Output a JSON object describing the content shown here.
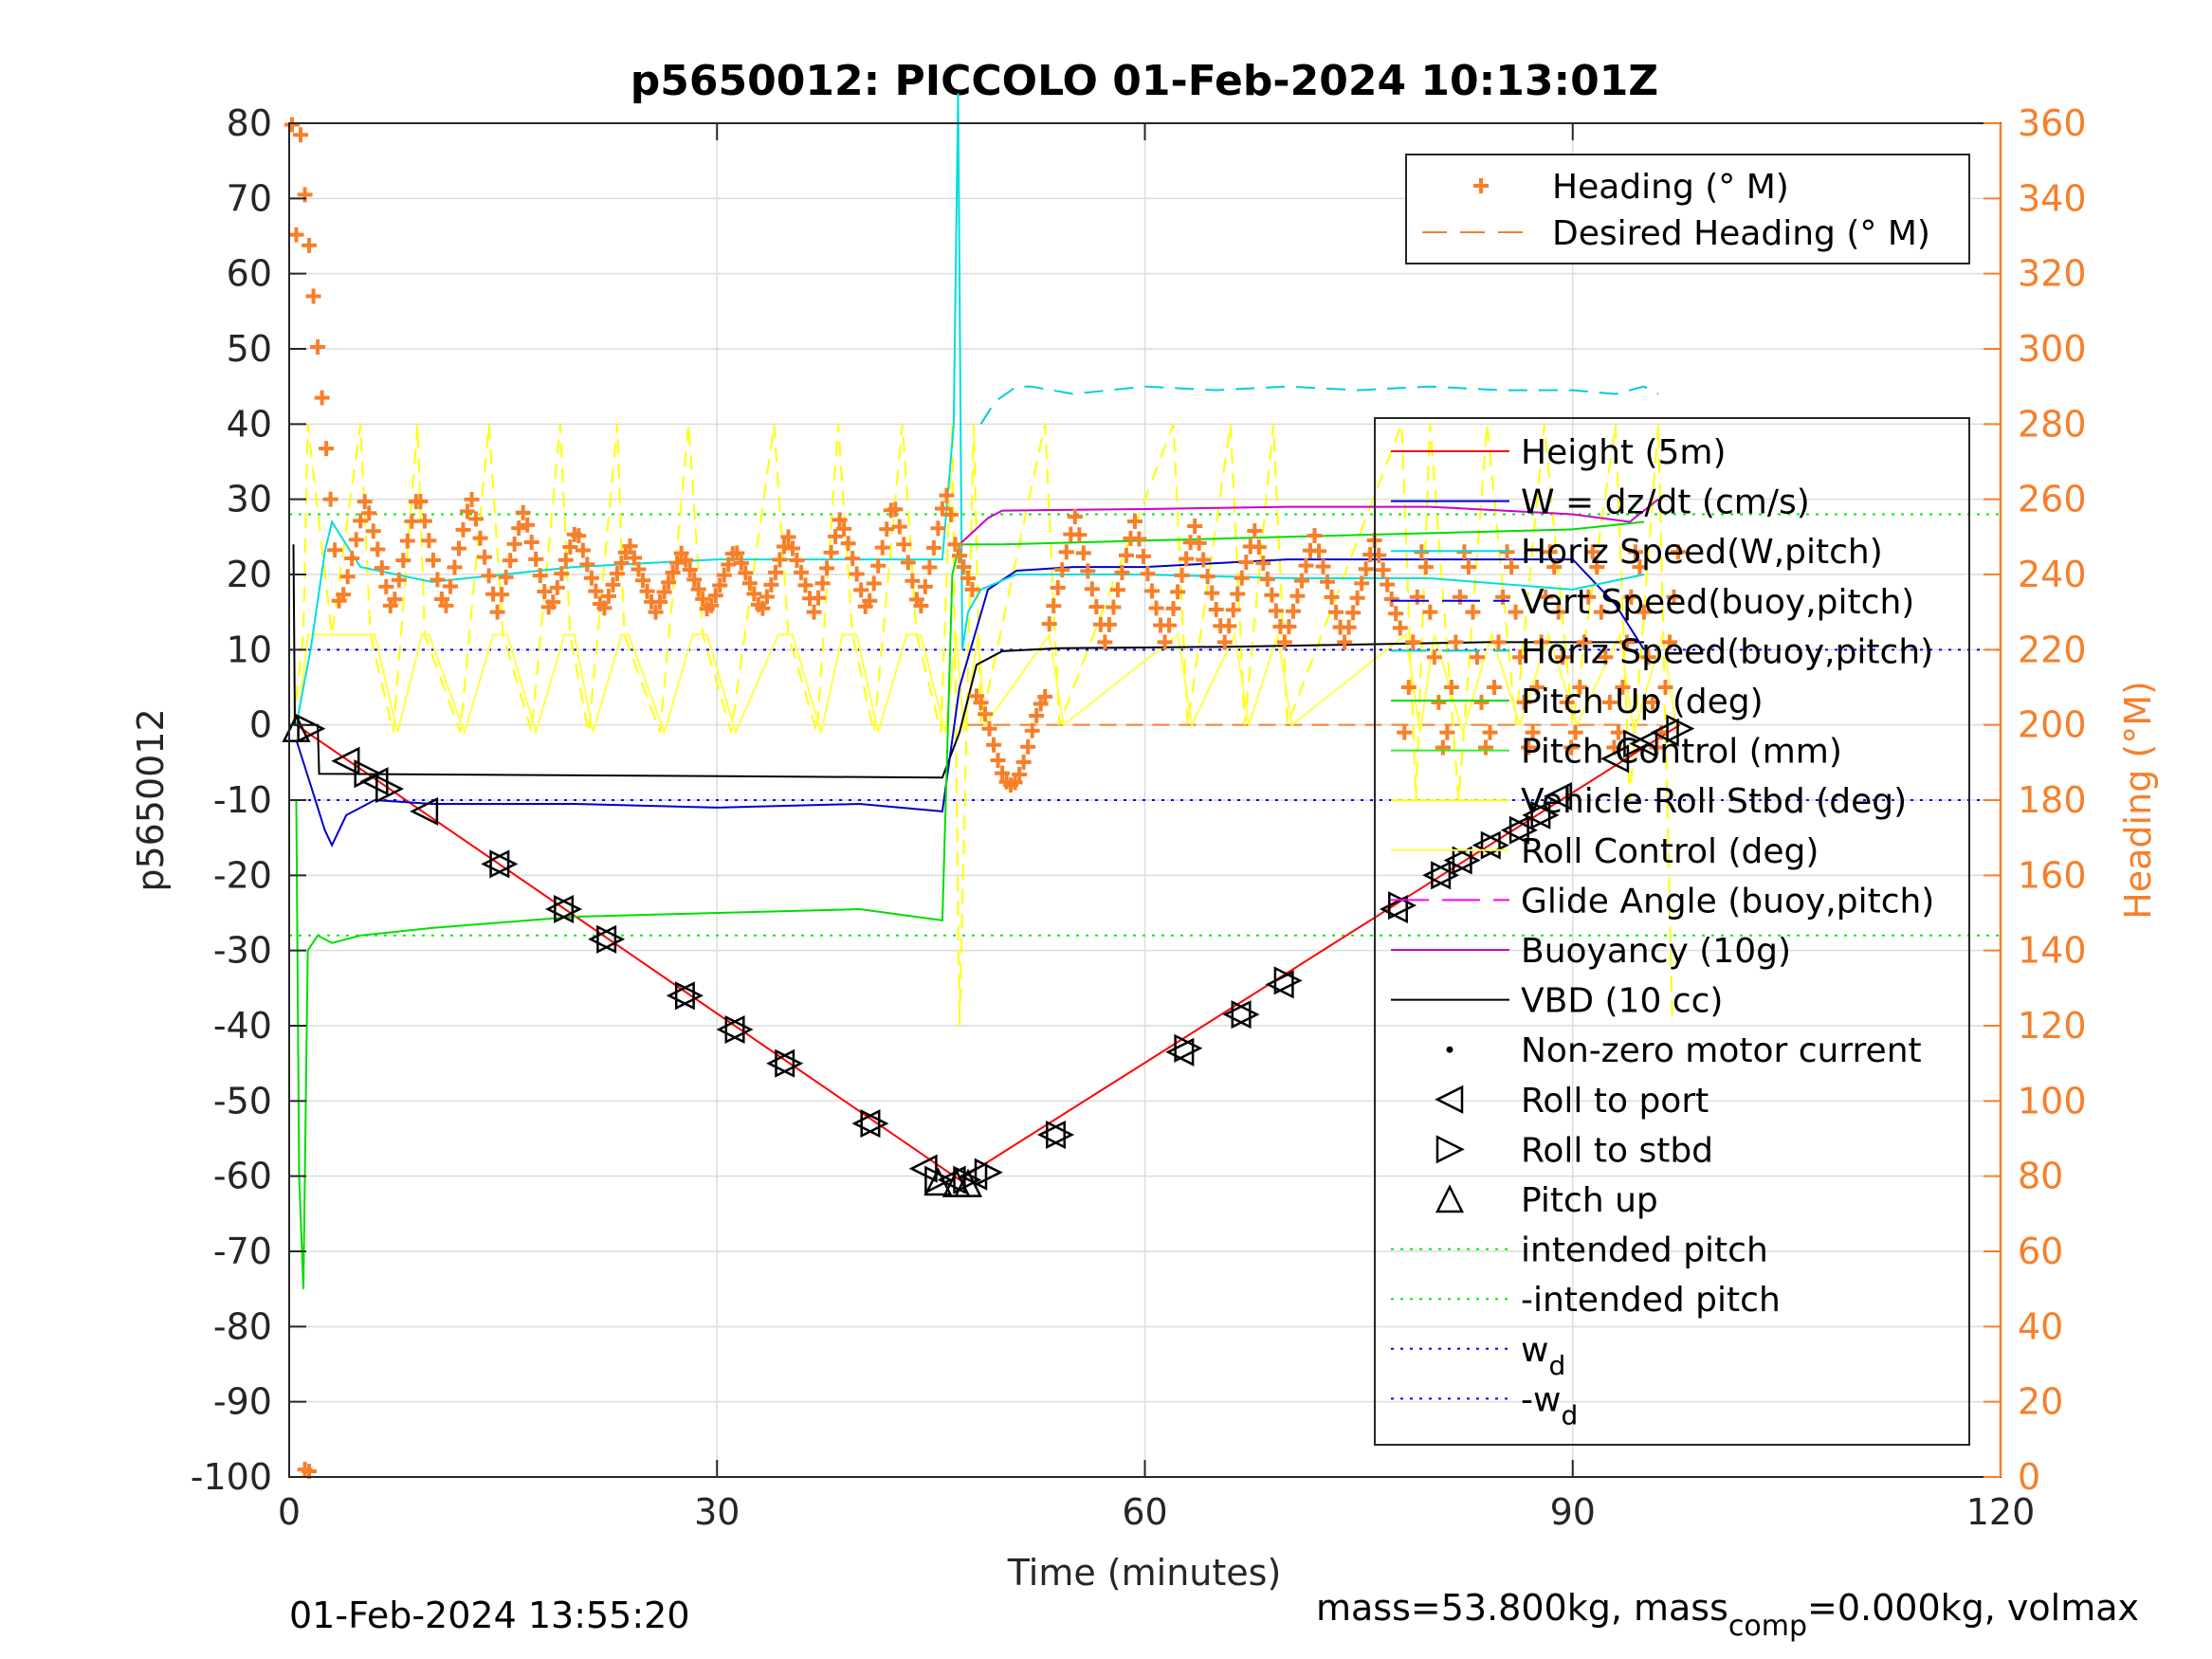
{
  "figure": {
    "title": "p5650012: PICCOLO 01-Feb-2024 10:13:01Z",
    "footer_left": "01-Feb-2024 13:55:20",
    "footer_right_prefix": "mass=53.800kg, mass",
    "footer_right_sub": "comp",
    "footer_right_suffix": "=0.000kg, volmax"
  },
  "chart_data": {
    "type": "line",
    "title": "p5650012: PICCOLO 01-Feb-2024 10:13:01Z",
    "xlabel": "Time (minutes)",
    "ylabel": "p5650012",
    "y2label": "Heading (°M)",
    "xlim": [
      0,
      120
    ],
    "ylim": [
      -100,
      80
    ],
    "y2lim": [
      0,
      360
    ],
    "grid": true,
    "x_ticks": [
      0,
      30,
      60,
      90,
      120
    ],
    "x_tick_labels": [
      "0",
      "30",
      "60",
      "90",
      "120"
    ],
    "y_ticks": [
      80,
      70,
      60,
      50,
      40,
      30,
      20,
      10,
      0,
      -10,
      -20,
      -30,
      -40,
      -50,
      -60,
      -70,
      -80,
      -90,
      -100
    ],
    "y_tick_labels": [
      "80",
      "70",
      "60",
      "50",
      "40",
      "30",
      "20",
      "10",
      "0",
      "-10",
      "-20",
      "-30",
      "-40",
      "-50",
      "-60",
      "-70",
      "-80",
      "-90",
      "-100"
    ],
    "y2_ticks": [
      360,
      340,
      320,
      300,
      280,
      260,
      240,
      220,
      200,
      180,
      160,
      140,
      120,
      100,
      80,
      60,
      40,
      20,
      0
    ],
    "y2_tick_labels": [
      "360",
      "340",
      "320",
      "300",
      "280",
      "260",
      "240",
      "220",
      "200",
      "180",
      "160",
      "140",
      "120",
      "100",
      "80",
      "60",
      "40",
      "20",
      "0"
    ],
    "legend_heading": [
      {
        "label": "Heading (° M)",
        "color": "#f77f2a",
        "style": "plus"
      },
      {
        "label": "Desired Heading (° M)",
        "color": "#f77f2a",
        "style": "dash"
      }
    ],
    "legend_main": [
      {
        "label": "Height (5m)",
        "color": "#ff0000",
        "style": "line"
      },
      {
        "label": "W = dz/dt (cm/s)",
        "color": "#0000cc",
        "style": "line"
      },
      {
        "label": "Horiz Speed(W,pitch)",
        "color": "#00dddd",
        "style": "line"
      },
      {
        "label": "Vert Speed(buoy,pitch)",
        "color": "#0000ff",
        "style": "dashline"
      },
      {
        "label": "Horiz Speed(buoy,pitch)",
        "color": "#00ccdd",
        "style": "dashline"
      },
      {
        "label": "Pitch Up (deg)",
        "color": "#00dd00",
        "style": "line"
      },
      {
        "label": "Pitch Control (mm)",
        "color": "#33ee33",
        "style": "line"
      },
      {
        "label": "Vehicle Roll Stbd (deg)",
        "color": "#ffff00",
        "style": "line"
      },
      {
        "label": "Roll Control (deg)",
        "color": "#ffff44",
        "style": "line"
      },
      {
        "label": "Glide Angle (buoy,pitch)",
        "color": "#ff00ff",
        "style": "dashline"
      },
      {
        "label": "Buoyancy (10g)",
        "color": "#cc00cc",
        "style": "line"
      },
      {
        "label": "VBD (10 cc)",
        "color": "#000000",
        "style": "line"
      },
      {
        "label": "Non-zero motor current",
        "color": "#000000",
        "style": "dot"
      },
      {
        "label": "Roll to port",
        "color": "#000000",
        "style": "tri-left"
      },
      {
        "label": "Roll to stbd",
        "color": "#000000",
        "style": "tri-right"
      },
      {
        "label": "Pitch up",
        "color": "#000000",
        "style": "tri-up"
      },
      {
        "label": "intended pitch",
        "color": "#00ee00",
        "style": "dotted"
      },
      {
        "label": "-intended pitch",
        "color": "#00ee00",
        "style": "dotted"
      },
      {
        "label": "w",
        "sub": "d",
        "color": "#0000ff",
        "style": "dotted"
      },
      {
        "label": "-w",
        "sub": "d",
        "color": "#0000ff",
        "style": "dotted"
      }
    ],
    "reference_lines": [
      {
        "name": "intended pitch",
        "y": 28,
        "color": "#00ee00"
      },
      {
        "name": "-intended pitch",
        "y": -28,
        "color": "#00ee00"
      },
      {
        "name": "w_d",
        "y": 10,
        "color": "#0000ff"
      },
      {
        "name": "-w_d",
        "y": -10,
        "color": "#0000ff"
      },
      {
        "name": "Desired Heading (° M)",
        "y2": 200,
        "color": "#f77f2a"
      }
    ],
    "series": [
      {
        "name": "Height (5m)",
        "color": "#ff0000",
        "x": [
          0.5,
          47,
          97.5
        ],
        "y": [
          0,
          -60.5,
          0
        ]
      },
      {
        "name": "VBD (10 cc)",
        "color": "#000000",
        "x": [
          0.3,
          0.4,
          2,
          2.1,
          45.8,
          47,
          48.2,
          50,
          54,
          60,
          66,
          72,
          78,
          84,
          90,
          95
        ],
        "y": [
          24,
          0,
          0,
          -6.5,
          -7,
          -1,
          8,
          9.8,
          10.2,
          10.3,
          10.4,
          10.6,
          10.8,
          11,
          11,
          11
        ]
      },
      {
        "name": "W = dz/dt (cm/s)",
        "color": "#0000cc",
        "x": [
          0.5,
          1.5,
          2.5,
          3,
          4,
          6,
          10,
          20,
          30,
          40,
          45.8,
          47,
          49,
          51,
          55,
          60,
          70,
          80,
          90,
          93,
          95
        ],
        "y": [
          -2,
          -8,
          -14,
          -16,
          -12,
          -10,
          -10.5,
          -10.5,
          -11,
          -10.5,
          -11.5,
          5,
          18,
          20.5,
          21,
          21,
          22,
          22,
          22,
          16,
          10
        ]
      },
      {
        "name": "Horiz Speed(W,pitch)",
        "color": "#00dddd",
        "x": [
          0.5,
          1.5,
          2.5,
          3,
          5,
          10,
          20,
          30,
          40,
          45.8,
          46.6,
          46.9,
          47.2,
          47.6,
          48.5,
          51,
          60,
          70,
          80,
          90,
          95
        ],
        "y": [
          0,
          10,
          23,
          27,
          21,
          19,
          21,
          22,
          22,
          22,
          40,
          84,
          10,
          15,
          18,
          20,
          20,
          19.5,
          19.5,
          18,
          20
        ]
      },
      {
        "name": "Horiz Speed(buoy,pitch)",
        "color": "#00ccdd",
        "x": [
          48.5,
          49.5,
          51,
          52,
          55,
          60,
          65,
          70,
          75,
          80,
          85,
          90,
          93,
          95,
          96
        ],
        "y": [
          40,
          43,
          45,
          45,
          44,
          45,
          44.5,
          45,
          44.5,
          45,
          44.5,
          44.5,
          44,
          45,
          44
        ]
      },
      {
        "name": "Pitch Up (deg)",
        "color": "#00dd00",
        "x": [
          0.5,
          0.7,
          1,
          1.3,
          2,
          3,
          5,
          10,
          20,
          30,
          40,
          45.8,
          46.5,
          47,
          50,
          60,
          70,
          80,
          90,
          95
        ],
        "y": [
          -10,
          -60,
          -75,
          -30,
          -28,
          -29,
          -28,
          -27,
          -25.5,
          -25,
          -24.5,
          -26,
          20,
          24,
          24,
          24.5,
          25,
          25.5,
          26,
          27
        ]
      },
      {
        "name": "Buoyancy (10g)",
        "color": "#cc00cc",
        "x": [
          47,
          49,
          50,
          60,
          70,
          80,
          90,
          94,
          96
        ],
        "y": [
          24,
          27.5,
          28.5,
          28.7,
          29,
          29,
          28,
          27,
          30
        ]
      },
      {
        "name": "Heading (° M)",
        "color": "#f77f2a",
        "axis": "y2",
        "style": "plus"
      }
    ],
    "markers": {
      "roll_to_port": [
        [
          4,
          -4.8
        ],
        [
          6,
          -7.5
        ],
        [
          9.5,
          -11.5
        ],
        [
          14.5,
          -18.5
        ],
        [
          19,
          -24.5
        ],
        [
          22,
          -28.5
        ],
        [
          27.5,
          -36
        ],
        [
          31,
          -40.5
        ],
        [
          34.5,
          -45
        ],
        [
          40.5,
          -53
        ],
        [
          44.5,
          -59
        ],
        [
          46.5,
          -60.5
        ],
        [
          48,
          -60
        ],
        [
          53.5,
          -54.5
        ],
        [
          62.5,
          -43.5
        ],
        [
          66.5,
          -38.5
        ],
        [
          69.5,
          -34.5
        ],
        [
          77.5,
          -24.5
        ],
        [
          80.5,
          -20
        ],
        [
          82,
          -18
        ],
        [
          84,
          -16
        ],
        [
          86,
          -14
        ],
        [
          87.5,
          -12
        ],
        [
          89,
          -9.5
        ],
        [
          93,
          -4.5
        ],
        [
          95,
          -2.5
        ],
        [
          96.5,
          -1
        ]
      ],
      "roll_to_stbd": [
        [
          1.5,
          -0.5
        ],
        [
          5.5,
          -6.5
        ],
        [
          7,
          -8.5
        ],
        [
          15,
          -18.5
        ],
        [
          19.5,
          -24.5
        ],
        [
          22.5,
          -28.5
        ],
        [
          28,
          -36
        ],
        [
          31.5,
          -40.5
        ],
        [
          35,
          -45
        ],
        [
          41,
          -53
        ],
        [
          45.5,
          -60.5
        ],
        [
          47.5,
          -60.5
        ],
        [
          49,
          -59.5
        ],
        [
          54,
          -54.5
        ],
        [
          63,
          -43
        ],
        [
          67,
          -38.5
        ],
        [
          70,
          -34
        ],
        [
          78,
          -24
        ],
        [
          81,
          -20
        ],
        [
          82.5,
          -18
        ],
        [
          84.5,
          -16
        ],
        [
          86.5,
          -14
        ],
        [
          88,
          -12
        ],
        [
          94.5,
          -2.5
        ],
        [
          97.5,
          -0.5
        ]
      ],
      "pitch_up": [
        [
          0.5,
          -0.5
        ],
        [
          45.5,
          -60.8
        ],
        [
          46.8,
          -61
        ],
        [
          47.6,
          -61
        ]
      ]
    }
  }
}
